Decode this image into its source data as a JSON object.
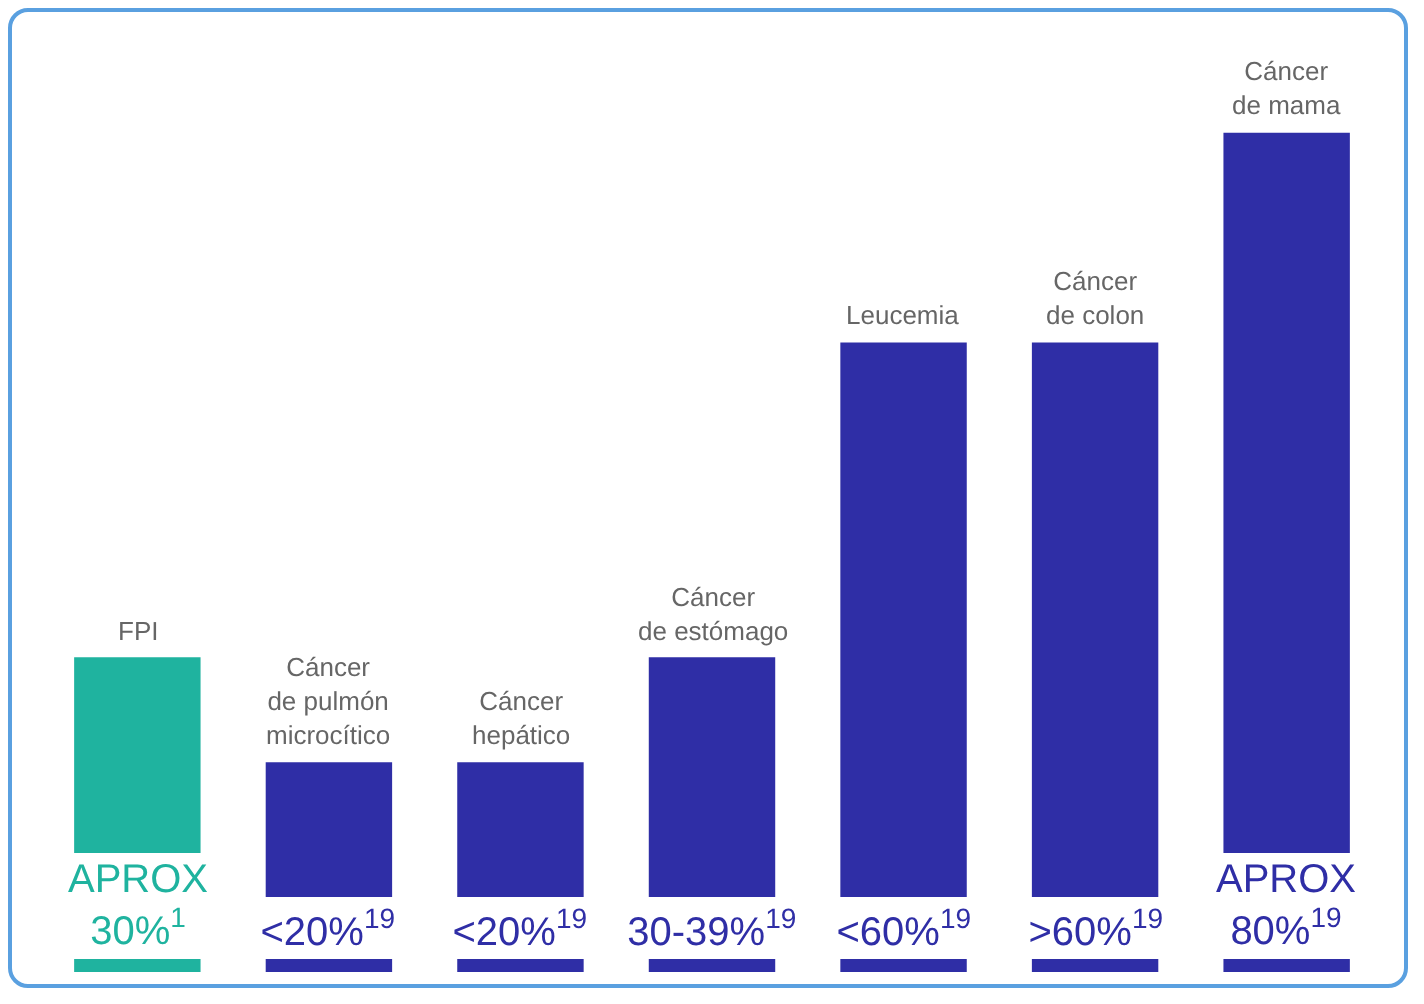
{
  "chart_data": {
    "type": "bar",
    "categories": [
      "FPI",
      "Cáncer\nde pulmón\nmicrocítico",
      "Cáncer\nhepático",
      "Cáncer\nde estómago",
      "Leucemia",
      "Cáncer\nde colon",
      "Cáncer\nde mama"
    ],
    "values": [
      30,
      20,
      20,
      30,
      60,
      60,
      80
    ],
    "colors": [
      "#1fb39f",
      "#2f2ea6",
      "#2f2ea6",
      "#2f2ea6",
      "#2f2ea6",
      "#2f2ea6",
      "#2f2ea6"
    ],
    "value_labels": [
      "APROX\n30%$^{1}$",
      "<20%$^{19}$",
      "<20%$^{19}$",
      "30-39%$^{19}$",
      "<60%$^{19}$",
      ">60%$^{19}$",
      "APROX\n80%$^{19}$"
    ],
    "grid": false,
    "legend": false
  }
}
